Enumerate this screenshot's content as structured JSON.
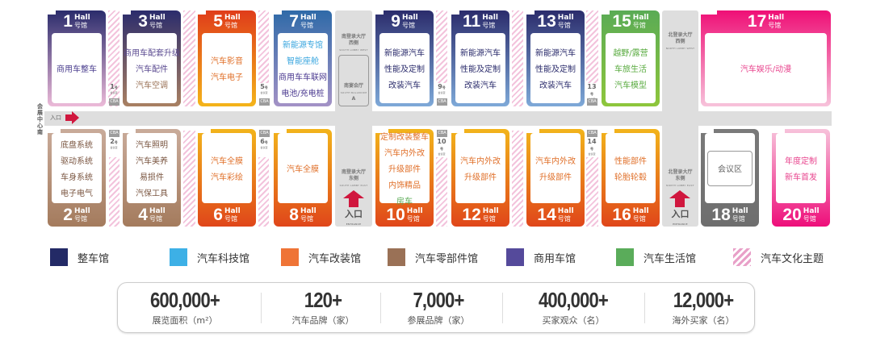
{
  "corridor": {
    "side_label": "会展中心南",
    "entrance_label": "入口",
    "entrance_en": "ENTRANCE"
  },
  "lobbies": {
    "south_west": {
      "name": "南登录大厅",
      "side": "西侧",
      "en": "SOUTH LOBBY WEST",
      "ballroom": "南宴会厅",
      "ballroom_en": "SOUTH BALLROOM",
      "ballroom_id": "A"
    },
    "south_east": {
      "name": "南登录大厅",
      "side": "东侧",
      "en": "SOUTH LOBBY EAST",
      "entrance": "入口",
      "entrance_en": "ENTRANCE"
    },
    "north_west": {
      "name": "北登录大厅",
      "side": "西侧",
      "en": "NORTH LOBBY WEST"
    },
    "north_east": {
      "name": "北登录大厅",
      "side": "东侧",
      "en": "NORTH LOBBY EAST",
      "entrance": "入口",
      "entrance_en": "ENTRANCE"
    }
  },
  "hall_word": "Hall",
  "hall_cn": "号馆",
  "halls": [
    {
      "number": "1",
      "top": "#2b2c6c",
      "bottom": "#ecbad8",
      "lines": [
        {
          "t": "商用车整车",
          "c": "#4b3f8f"
        }
      ]
    },
    {
      "number": "3",
      "top": "#2b2c6c",
      "bottom": "#a98062",
      "lines": [
        {
          "t": "商用车配套升级",
          "c": "#5a4a90"
        },
        {
          "t": "汽车配件",
          "c": "#5a4a90"
        },
        {
          "t": "汽车空调",
          "c": "#9a7156"
        }
      ]
    },
    {
      "number": "5",
      "top": "#e03c1a",
      "bottom": "#f4b41a",
      "lines": [
        {
          "t": "汽车影音",
          "c": "#e0702a"
        },
        {
          "t": "汽车电子",
          "c": "#e0702a"
        }
      ]
    },
    {
      "number": "7",
      "top": "#2f6aa8",
      "bottom": "#a392c6",
      "lines": [
        {
          "t": "新能源专馆",
          "c": "#3aa6df"
        },
        {
          "t": "智能座舱",
          "c": "#3aa6df"
        },
        {
          "t": "商用车车联网",
          "c": "#4b3a90"
        },
        {
          "t": "电池/充电桩",
          "c": "#4b3a90"
        }
      ]
    },
    {
      "number": "9",
      "top": "#2b2c6c",
      "bottom": "#7ea9d8",
      "lines": [
        {
          "t": "新能源汽车",
          "c": "#2b2c6c"
        },
        {
          "t": "性能及定制",
          "c": "#2b2c6c"
        },
        {
          "t": "改装汽车",
          "c": "#2b2c6c"
        }
      ]
    },
    {
      "number": "11",
      "top": "#2b2c6c",
      "bottom": "#7ea9d8",
      "lines": [
        {
          "t": "新能源汽车",
          "c": "#2b2c6c"
        },
        {
          "t": "性能及定制",
          "c": "#2b2c6c"
        },
        {
          "t": "改装汽车",
          "c": "#2b2c6c"
        }
      ]
    },
    {
      "number": "13",
      "top": "#2b2c6c",
      "bottom": "#7ea9d8",
      "lines": [
        {
          "t": "新能源汽车",
          "c": "#2b2c6c"
        },
        {
          "t": "性能及定制",
          "c": "#2b2c6c"
        },
        {
          "t": "改装汽车",
          "c": "#2b2c6c"
        }
      ]
    },
    {
      "number": "15",
      "top": "#5aab55",
      "bottom": "#8ec63c",
      "lines": [
        {
          "t": "越野/露营",
          "c": "#5aab40"
        },
        {
          "t": "车旅生活",
          "c": "#5aab40"
        },
        {
          "t": "汽车模型",
          "c": "#5aab40"
        }
      ]
    },
    {
      "number": "17",
      "top": "#ef0f76",
      "bottom": "#f7c3db",
      "lines": [
        {
          "t": "汽车娱乐/动漫",
          "c": "#e8458e"
        }
      ]
    },
    {
      "number": "2",
      "top": "#c9ab9a",
      "bottom": "#a47b5d",
      "lines": [
        {
          "t": "底盘系统",
          "c": "#7a5540"
        },
        {
          "t": "驱动系统",
          "c": "#7a5540"
        },
        {
          "t": "车身系统",
          "c": "#7a5540"
        },
        {
          "t": "电子电气",
          "c": "#7a5540"
        }
      ]
    },
    {
      "number": "4",
      "top": "#c9ab9a",
      "bottom": "#a47b5d",
      "lines": [
        {
          "t": "汽车照明",
          "c": "#7a5540"
        },
        {
          "t": "汽车美养",
          "c": "#7a5540"
        },
        {
          "t": "易损件",
          "c": "#7a5540"
        },
        {
          "t": "汽保工具",
          "c": "#7a5540"
        }
      ]
    },
    {
      "number": "6",
      "top": "#f2b41b",
      "bottom": "#e0461a",
      "lines": [
        {
          "t": "汽车全膜",
          "c": "#e0702a"
        },
        {
          "t": "汽车彩绘",
          "c": "#e0702a"
        }
      ]
    },
    {
      "number": "8",
      "top": "#f2b41b",
      "bottom": "#e0461a",
      "lines": [
        {
          "t": "汽车全膜",
          "c": "#e0702a"
        }
      ]
    },
    {
      "number": "10",
      "top": "#f2b41b",
      "bottom": "#e0461a",
      "lines": [
        {
          "t": "定制改装整车",
          "c": "#e0702a"
        },
        {
          "t": "汽车内外改",
          "c": "#e0702a"
        },
        {
          "t": "升级部件",
          "c": "#e0702a"
        },
        {
          "t": "内饰精品",
          "c": "#e0702a"
        },
        {
          "t": "房车",
          "c": "#5aab55"
        }
      ]
    },
    {
      "number": "12",
      "top": "#f2b41b",
      "bottom": "#e0461a",
      "lines": [
        {
          "t": "汽车内外改",
          "c": "#e0702a"
        },
        {
          "t": "升级部件",
          "c": "#e0702a"
        }
      ]
    },
    {
      "number": "14",
      "top": "#f2b41b",
      "bottom": "#e0461a",
      "lines": [
        {
          "t": "汽车内外改",
          "c": "#e0702a"
        },
        {
          "t": "升级部件",
          "c": "#e0702a"
        }
      ]
    },
    {
      "number": "16",
      "top": "#f2b41b",
      "bottom": "#e0461a",
      "lines": [
        {
          "t": "性能部件",
          "c": "#e0702a"
        },
        {
          "t": "轮胎轮毂",
          "c": "#e0702a"
        }
      ]
    },
    {
      "number": "18",
      "top": "#7a7a7a",
      "bottom": "#6e6e6e",
      "lines": [],
      "room": "会议区"
    },
    {
      "number": "20",
      "top": "#f7c3db",
      "bottom": "#ee0e7a",
      "lines": [
        {
          "t": "年度定制",
          "c": "#e8458e"
        },
        {
          "t": "新车首发",
          "c": "#e8458e"
        }
      ]
    }
  ],
  "meeting_rooms": {
    "label": "会议室",
    "cba": "CBA",
    "rooms": [
      "1",
      "2",
      "5",
      "6",
      "9",
      "10",
      "13",
      "14"
    ],
    "suffix": "号"
  },
  "legend": [
    {
      "label": "整车馆",
      "color": "#232a66"
    },
    {
      "label": "汽车科技馆",
      "color": "#3db0e6"
    },
    {
      "label": "汽车改装馆",
      "color": "#ef7436"
    },
    {
      "label": "汽车零部件馆",
      "color": "#9a7156"
    },
    {
      "label": "商用车馆",
      "color": "#554a9b"
    },
    {
      "label": "汽车生活馆",
      "color": "#5aac5a"
    },
    {
      "label": "汽车文化主题",
      "color": "stripes"
    }
  ],
  "stats": [
    {
      "value": "600,000+",
      "label": "展览面积（m²）"
    },
    {
      "value": "120+",
      "label": "汽车品牌（家）"
    },
    {
      "value": "7,000+",
      "label": "参展品牌（家）"
    },
    {
      "value": "400,000+",
      "label": "买家观众（名）"
    },
    {
      "value": "12,000+",
      "label": "海外买家（名）"
    }
  ]
}
